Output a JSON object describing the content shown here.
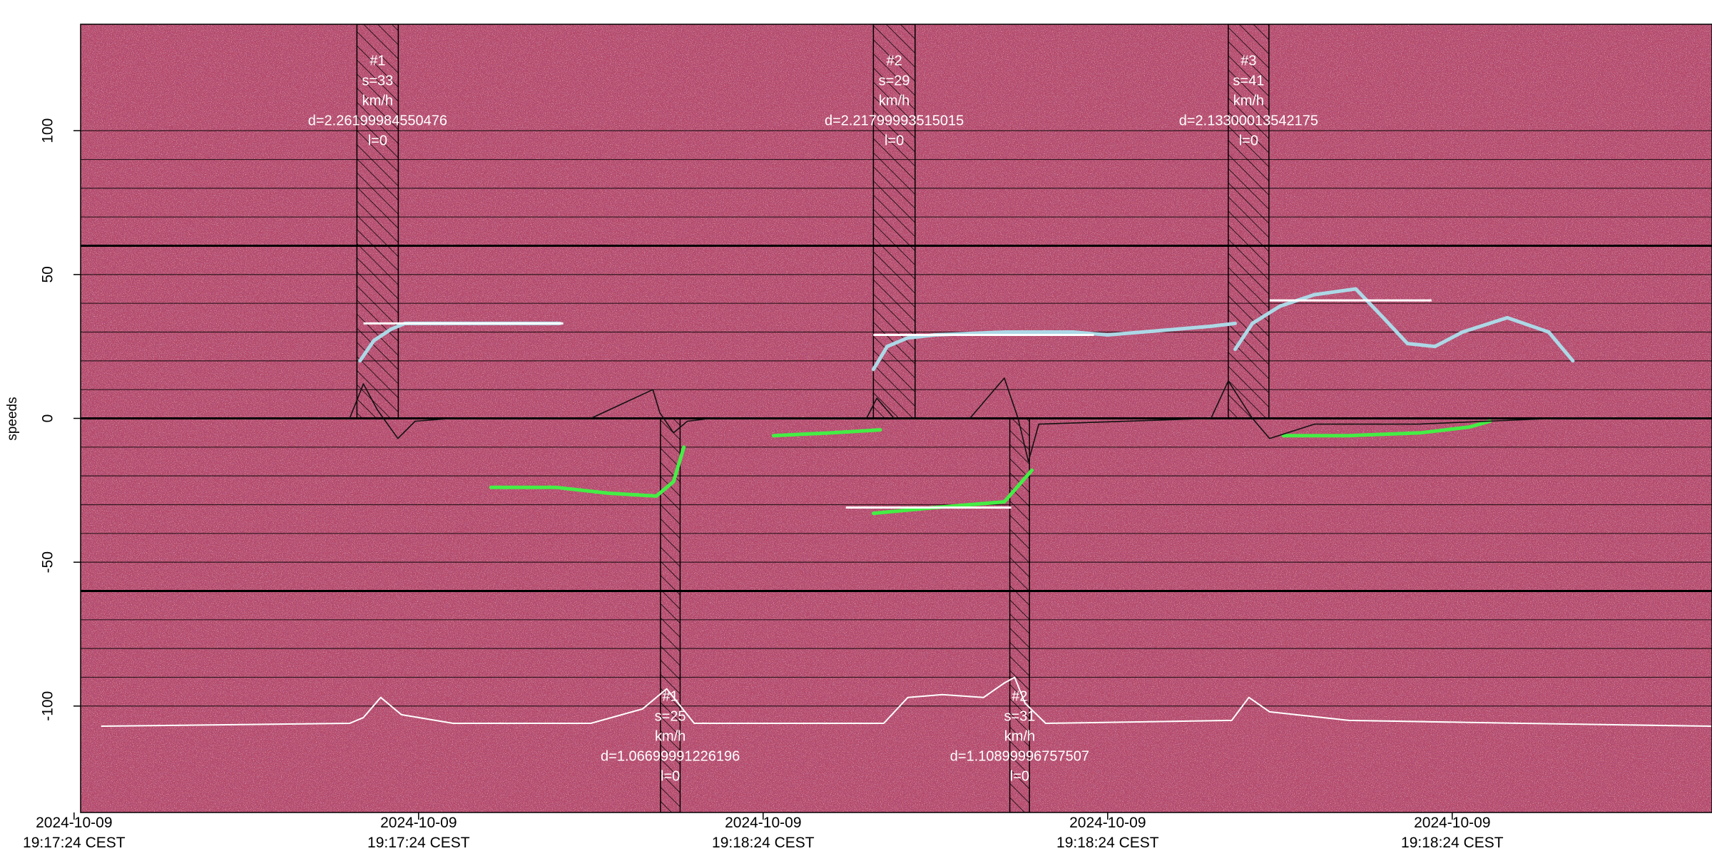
{
  "chart_data": {
    "type": "spectrogram",
    "y_label": "speeds",
    "ylim": [
      -137,
      137
    ],
    "yticks": [
      -100,
      -50,
      0,
      50,
      100
    ],
    "xlim": [
      0.019,
      4.754
    ],
    "xticks": [
      {
        "value": 0,
        "label": "2024-10-09\n19:17:24 CEST"
      },
      {
        "value": 1,
        "label": "2024-10-09\n19:17:24 CEST"
      },
      {
        "value": 2,
        "label": "2024-10-09\n19:18:24 CEST"
      },
      {
        "value": 3,
        "label": "2024-10-09\n19:18:24 CEST"
      },
      {
        "value": 4,
        "label": "2024-10-09\n19:18:24 CEST"
      }
    ],
    "speed_lines": [
      -100,
      -90,
      -80,
      -70,
      -60,
      -50,
      -40,
      -30,
      -20,
      -10,
      0,
      10,
      20,
      30,
      40,
      50,
      60,
      70,
      80,
      90,
      100
    ],
    "bold_lines": [
      -60,
      0,
      60
    ],
    "upper_bands": [
      {
        "x": [
          0.821,
          0.941
        ],
        "label_lines": [
          "#1",
          "s=33",
          "km/h",
          "d=2.26199984550476",
          "l=0"
        ]
      },
      {
        "x": [
          2.32,
          2.441
        ],
        "label_lines": [
          "#2",
          "s=29",
          "km/h",
          "d=2.21799993515015",
          "l=0"
        ]
      },
      {
        "x": [
          3.35,
          3.468
        ],
        "label_lines": [
          "#3",
          "s=41",
          "km/h",
          "d=2.13300013542175",
          "l=0"
        ]
      }
    ],
    "lower_bands": [
      {
        "x": [
          1.702,
          1.759
        ],
        "label_lines": [
          "#1",
          "s=25",
          "km/h",
          "d=1.06699991226196",
          "l=0"
        ]
      },
      {
        "x": [
          2.716,
          2.773
        ],
        "label_lines": [
          "#2",
          "s=31",
          "km/h",
          "d=1.10899996757507",
          "l=0"
        ]
      }
    ],
    "mean_lines": [
      {
        "x": [
          0.84,
          1.42
        ],
        "value": 33
      },
      {
        "x": [
          2.32,
          2.96
        ],
        "value": 29
      },
      {
        "x": [
          3.47,
          3.94
        ],
        "value": 41
      },
      {
        "x": [
          2.24,
          2.72
        ],
        "value": -31
      }
    ],
    "series": [
      {
        "color": "#add8e6",
        "x": [
          0.83,
          0.87,
          0.92,
          0.96,
          1.1,
          1.25,
          1.41
        ],
        "values": [
          20,
          27,
          31,
          33,
          33,
          33,
          33
        ]
      },
      {
        "color": "#add8e6",
        "x": [
          2.32,
          2.36,
          2.42,
          2.5,
          2.7,
          2.9,
          3.0,
          3.1,
          3.3,
          3.37
        ],
        "values": [
          17,
          25,
          28,
          29,
          30,
          30,
          29,
          30,
          32,
          33
        ]
      },
      {
        "color": "#add8e6",
        "x": [
          3.37,
          3.42,
          3.5,
          3.6,
          3.72,
          3.8,
          3.87,
          3.95,
          4.03,
          4.16,
          4.28,
          4.35
        ],
        "values": [
          24,
          33,
          39,
          43,
          45,
          35,
          26,
          25,
          30,
          35,
          30,
          20
        ]
      },
      {
        "color": "#44ee44",
        "x": [
          1.21,
          1.4,
          1.55,
          1.69,
          1.74,
          1.77
        ],
        "values": [
          -24,
          -24,
          -26,
          -27,
          -22,
          -10
        ]
      },
      {
        "color": "#44ee44",
        "x": [
          2.03,
          2.2,
          2.34
        ],
        "values": [
          -6,
          -5,
          -4
        ]
      },
      {
        "color": "#44ee44",
        "x": [
          2.32,
          2.5,
          2.7,
          2.78
        ],
        "values": [
          -33,
          -31,
          -29,
          -18
        ]
      },
      {
        "color": "#44ee44",
        "x": [
          3.51,
          3.7,
          3.91,
          4.05,
          4.11
        ],
        "values": [
          -6,
          -6,
          -5,
          -3,
          -1
        ]
      },
      {
        "color": "#111111",
        "x": [
          0.45,
          0.8,
          0.84,
          0.88,
          0.94,
          0.99,
          1.1,
          1.5,
          1.68,
          1.7,
          1.74,
          1.78,
          1.85,
          2.3,
          2.33,
          2.38,
          2.6,
          2.7,
          2.74,
          2.77,
          2.8,
          3.3,
          3.35,
          3.42,
          3.47,
          3.6,
          3.9,
          4.3,
          4.75
        ],
        "values": [
          0,
          0,
          12,
          3,
          -7,
          -1,
          0,
          0,
          10,
          2,
          -5,
          -1,
          0,
          0,
          7,
          0,
          0,
          14,
          0,
          -15,
          -2,
          0,
          13,
          0,
          -7,
          -2,
          -2,
          0,
          0
        ]
      },
      {
        "color": "#ffffff",
        "x": [
          0.08,
          0.8,
          0.84,
          0.89,
          0.95,
          1.1,
          1.5,
          1.65,
          1.72,
          1.8,
          2.35,
          2.42,
          2.52,
          2.64,
          2.7,
          2.73,
          2.76,
          2.82,
          3.36,
          3.41,
          3.47,
          3.7,
          4.2,
          4.75
        ],
        "values": [
          -107,
          -106,
          -104,
          -97,
          -103,
          -106,
          -106,
          -101,
          -94,
          -106,
          -106,
          -97,
          -96,
          -97,
          -92,
          -90,
          -99,
          -106,
          -105,
          -97,
          -102,
          -105,
          -106,
          -107
        ]
      }
    ]
  }
}
